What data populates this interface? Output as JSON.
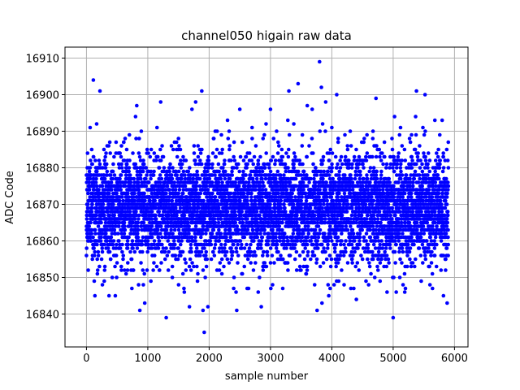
{
  "chart_data": {
    "type": "scatter",
    "title": "channel050 higain raw data",
    "xlabel": "sample number",
    "ylabel": "ADC Code",
    "xlim": [
      -350,
      6220
    ],
    "ylim": [
      16831,
      16913
    ],
    "xticks": [
      0,
      1000,
      2000,
      3000,
      4000,
      5000,
      6000
    ],
    "yticks": [
      16840,
      16850,
      16860,
      16870,
      16880,
      16890,
      16900,
      16910
    ],
    "grid": true,
    "marker_color": "#0000ff",
    "series": [
      {
        "points": [
          [
            0,
            16856
          ],
          [
            60,
            16891
          ],
          [
            112,
            16904
          ],
          [
            180,
            16880
          ],
          [
            220,
            16901
          ],
          [
            260,
            16848
          ],
          [
            300,
            16853
          ],
          [
            380,
            16887
          ],
          [
            420,
            16850
          ],
          [
            470,
            16845
          ],
          [
            520,
            16884
          ],
          [
            600,
            16856
          ],
          [
            700,
            16889
          ],
          [
            800,
            16894
          ],
          [
            820,
            16897
          ],
          [
            850,
            16848
          ],
          [
            870,
            16841
          ],
          [
            950,
            16843
          ],
          [
            990,
            16885
          ],
          [
            1050,
            16849
          ],
          [
            1150,
            16891
          ],
          [
            1210,
            16898
          ],
          [
            1300,
            16839
          ],
          [
            1400,
            16850
          ],
          [
            1500,
            16888
          ],
          [
            1620,
            16854
          ],
          [
            1720,
            16896
          ],
          [
            1780,
            16898
          ],
          [
            1810,
            16849
          ],
          [
            1880,
            16901
          ],
          [
            1900,
            16841
          ],
          [
            1920,
            16835
          ],
          [
            1980,
            16842
          ],
          [
            2100,
            16890
          ],
          [
            2200,
            16889
          ],
          [
            2300,
            16893
          ],
          [
            2400,
            16847
          ],
          [
            2450,
            16841
          ],
          [
            2500,
            16896
          ],
          [
            2620,
            16847
          ],
          [
            2700,
            16891
          ],
          [
            2800,
            16846
          ],
          [
            2850,
            16842
          ],
          [
            2900,
            16889
          ],
          [
            3000,
            16896
          ],
          [
            3100,
            16890
          ],
          [
            3200,
            16847
          ],
          [
            3300,
            16901
          ],
          [
            3380,
            16892
          ],
          [
            3450,
            16903
          ],
          [
            3520,
            16889
          ],
          [
            3600,
            16897
          ],
          [
            3680,
            16896
          ],
          [
            3720,
            16848
          ],
          [
            3760,
            16841
          ],
          [
            3800,
            16909
          ],
          [
            3830,
            16902
          ],
          [
            3850,
            16892
          ],
          [
            3900,
            16898
          ],
          [
            3950,
            16845
          ],
          [
            4000,
            16891
          ],
          [
            4080,
            16900
          ],
          [
            4200,
            16848
          ],
          [
            4300,
            16890
          ],
          [
            4400,
            16844
          ],
          [
            4520,
            16887
          ],
          [
            4600,
            16848
          ],
          [
            4700,
            16850
          ],
          [
            4720,
            16899
          ],
          [
            4820,
            16884
          ],
          [
            4900,
            16846
          ],
          [
            5000,
            16839
          ],
          [
            5050,
            16846
          ],
          [
            5120,
            16891
          ],
          [
            5200,
            16847
          ],
          [
            5300,
            16889
          ],
          [
            5380,
            16901
          ],
          [
            5450,
            16856
          ],
          [
            5520,
            16900
          ],
          [
            5600,
            16848
          ],
          [
            5680,
            16893
          ],
          [
            5760,
            16889
          ],
          [
            5820,
            16845
          ],
          [
            5880,
            16843
          ],
          [
            5900,
            16875
          ]
        ],
        "bulk": {
          "count": 6000,
          "x_range": [
            0,
            5900
          ],
          "mean": 16869,
          "std": 7.2
        }
      }
    ]
  }
}
